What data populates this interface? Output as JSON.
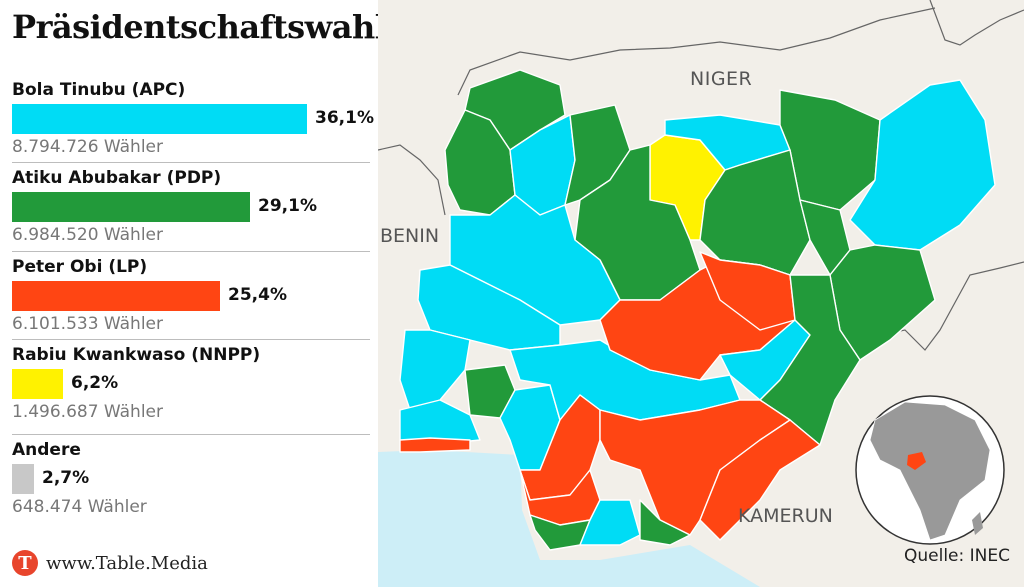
{
  "title": "Präsidentschaftswahl in Nigeria",
  "candidates": [
    {
      "name": "Bola Tinubu (APC)",
      "percent_label": "36,1%",
      "percent": 36.1,
      "votes": "8.794.726 Wähler",
      "color": "#00dcf5"
    },
    {
      "name": "Atiku Abubakar (PDP)",
      "percent_label": "29,1%",
      "percent": 29.1,
      "votes": "6.984.520 Wähler",
      "color": "#229a3a"
    },
    {
      "name": "Peter Obi (LP)",
      "percent_label": "25,4%",
      "percent": 25.4,
      "votes": "6.101.533 Wähler",
      "color": "#ff4513"
    },
    {
      "name": "Rabiu Kwankwaso (NNPP)",
      "percent_label": "6,2%",
      "percent": 6.2,
      "votes": "1.496.687 Wähler",
      "color": "#fff200"
    },
    {
      "name": "Andere",
      "percent_label": "2,7%",
      "percent": 2.7,
      "votes": "648.474 Wähler",
      "color": "#c8c8c8"
    }
  ],
  "map": {
    "labels": {
      "niger": "NIGER",
      "benin": "BENIN",
      "kamerun": "KAMERUN"
    },
    "sea_color": "#cdeef7",
    "land_color": "#f2efe9"
  },
  "brand": {
    "logo_letter": "T",
    "text": "www.Table.Media"
  },
  "source": "Quelle: INEC"
}
